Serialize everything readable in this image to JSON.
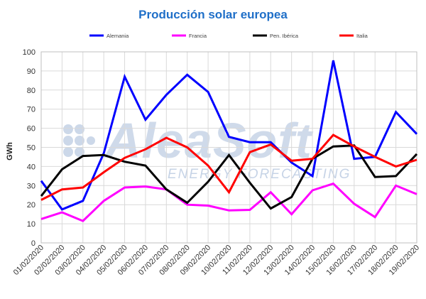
{
  "watermark": {
    "brand": "AleaSoft",
    "tagline": "ENERGY FORECASTING",
    "color": "#8ea9cf"
  },
  "chart_data": {
    "type": "line",
    "title": "Producción solar europea",
    "title_color": "#1f6fc8",
    "xlabel": "",
    "ylabel": "GWh",
    "ylim": [
      0,
      100
    ],
    "yticks": [
      0,
      10,
      20,
      30,
      40,
      50,
      60,
      70,
      80,
      90,
      100
    ],
    "grid": true,
    "legend_position": "top",
    "categories": [
      "01/02/2020",
      "02/02/2020",
      "03/02/2020",
      "04/02/2020",
      "05/02/2020",
      "06/02/2020",
      "07/02/2020",
      "08/02/2020",
      "09/02/2020",
      "10/02/2020",
      "11/02/2020",
      "12/02/2020",
      "13/02/2020",
      "14/02/2020",
      "15/02/2020",
      "16/02/2020",
      "17/02/2020",
      "18/02/2020",
      "19/02/2020"
    ],
    "series": [
      {
        "name": "Alemania",
        "color": "#0000ff",
        "values": [
          32.5,
          17.5,
          22,
          47,
          87,
          64.5,
          77.5,
          88,
          79,
          55.5,
          52.7,
          52.7,
          42,
          35,
          95.5,
          44,
          45,
          68.5,
          57
        ]
      },
      {
        "name": "Francia",
        "color": "#ff00ff",
        "values": [
          12.5,
          16,
          11.5,
          22,
          29,
          29.5,
          28,
          20,
          19.5,
          17,
          17.3,
          26.5,
          15,
          27.5,
          31,
          20.5,
          13.5,
          30,
          25.5
        ]
      },
      {
        "name": "Pen. Ibérica",
        "color": "#000000",
        "values": [
          24.5,
          38.5,
          45.5,
          46,
          42.5,
          40.5,
          28,
          21,
          32,
          46,
          31.5,
          18,
          24,
          44,
          50.5,
          51,
          34.5,
          35,
          46.5
        ]
      },
      {
        "name": "Italia",
        "color": "#ff0000",
        "values": [
          22.5,
          28,
          29,
          37,
          44.5,
          49,
          55,
          50,
          40.5,
          26.5,
          47.5,
          51.5,
          43,
          44,
          56.5,
          50.5,
          45,
          40,
          43.5
        ]
      }
    ]
  }
}
